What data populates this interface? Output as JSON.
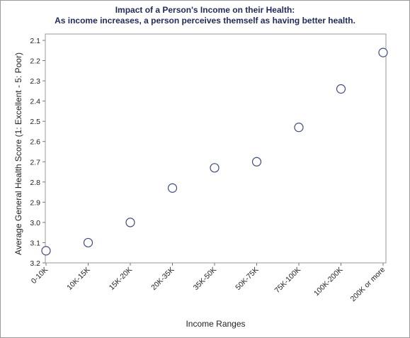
{
  "chart_data": {
    "type": "scatter",
    "title": "Impact of a Person's Income on their Health:",
    "subtitle": "As income increases, a person perceives themself as having better health.",
    "xlabel": "Income Ranges",
    "ylabel": "Average General Health Score (1: Excellent - 5: Poor)",
    "categories": [
      "0-10K",
      "10K-15K",
      "15K-20K",
      "20K-35K",
      "35K-50K",
      "50K-75K",
      "75K-100K",
      "100K-200K",
      "200K or more"
    ],
    "values": [
      3.14,
      3.1,
      3.0,
      2.83,
      2.73,
      2.7,
      2.53,
      2.34,
      2.16
    ],
    "ylim": [
      2.1,
      3.2
    ],
    "y_reversed": true,
    "yticks": [
      "2.1",
      "2.2",
      "2.3",
      "2.4",
      "2.5",
      "2.6",
      "2.7",
      "2.8",
      "2.9",
      "3.0",
      "3.1",
      "3.2"
    ],
    "grid": false,
    "marker": "open-circle",
    "marker_color": "#3b4a7a"
  }
}
